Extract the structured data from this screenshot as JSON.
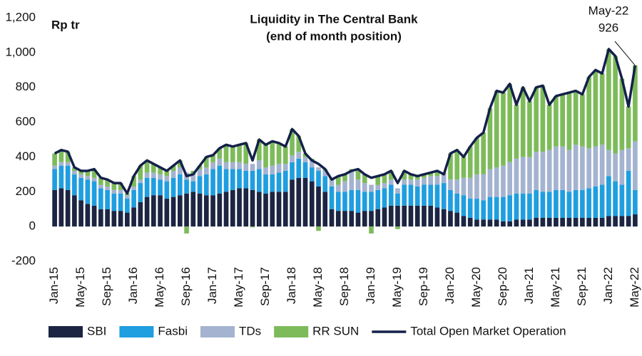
{
  "chart_data": {
    "type": "bar",
    "stacked": true,
    "grid": false,
    "title": "Liquidity in The Central Bank",
    "subtitle": "(end of month position)",
    "y_label": "Rp tr",
    "legend": "bottom",
    "categories": [
      "Jan-15",
      null,
      null,
      null,
      "May-15",
      null,
      null,
      null,
      "Sep-15",
      null,
      null,
      null,
      "Jan-16",
      null,
      null,
      null,
      "May-16",
      null,
      null,
      null,
      "Sep-16",
      null,
      null,
      null,
      "Jan-17",
      null,
      null,
      null,
      "May-17",
      null,
      null,
      null,
      "Sep-17",
      null,
      null,
      null,
      "Jan-18",
      null,
      null,
      null,
      "May-18",
      null,
      null,
      null,
      "Sep-18",
      null,
      null,
      null,
      "Jan-19",
      null,
      null,
      null,
      "May-19",
      null,
      null,
      null,
      "Sep-19",
      null,
      null,
      null,
      "Jan-20",
      null,
      null,
      null,
      "May-20",
      null,
      null,
      null,
      "Sep-20",
      null,
      null,
      null,
      "Jan-21",
      null,
      null,
      null,
      "May-21",
      null,
      null,
      null,
      "Sep-21",
      null,
      null,
      null,
      "Jan-22",
      null,
      null,
      null,
      "May-22"
    ],
    "ylim": [
      -200,
      1200
    ],
    "yticks": [
      -200,
      0,
      200,
      400,
      600,
      800,
      {
        "value": 1000,
        "label": "1,000"
      },
      {
        "value": 1200,
        "label": "1,200"
      }
    ],
    "series": [
      {
        "name": "SBI",
        "type": "bar",
        "color": "#1c2541",
        "values": [
          210,
          220,
          210,
          180,
          150,
          130,
          120,
          100,
          100,
          90,
          90,
          80,
          110,
          140,
          170,
          180,
          180,
          160,
          170,
          180,
          190,
          200,
          190,
          180,
          180,
          190,
          200,
          210,
          220,
          220,
          210,
          200,
          190,
          200,
          200,
          200,
          270,
          280,
          280,
          260,
          230,
          200,
          100,
          90,
          90,
          90,
          80,
          90,
          90,
          100,
          110,
          120,
          120,
          120,
          120,
          120,
          120,
          120,
          110,
          100,
          90,
          80,
          60,
          50,
          40,
          40,
          40,
          40,
          30,
          30,
          40,
          40,
          40,
          50,
          50,
          50,
          50,
          50,
          50,
          50,
          50,
          50,
          50,
          50,
          60,
          60,
          60,
          60,
          70
        ]
      },
      {
        "name": "Fasbi",
        "type": "bar",
        "color": "#1f9ee0",
        "values": [
          120,
          130,
          140,
          120,
          130,
          140,
          140,
          120,
          110,
          100,
          100,
          80,
          100,
          110,
          110,
          100,
          90,
          100,
          110,
          120,
          80,
          60,
          100,
          120,
          150,
          160,
          130,
          120,
          110,
          100,
          110,
          130,
          110,
          100,
          110,
          120,
          100,
          110,
          90,
          80,
          90,
          90,
          130,
          110,
          110,
          120,
          130,
          110,
          110,
          110,
          110,
          120,
          70,
          120,
          120,
          110,
          120,
          120,
          130,
          150,
          120,
          110,
          120,
          110,
          120,
          110,
          130,
          130,
          140,
          150,
          150,
          150,
          150,
          160,
          150,
          150,
          160,
          160,
          150,
          160,
          160,
          170,
          180,
          190,
          230,
          200,
          180,
          260,
          140
        ]
      },
      {
        "name": "TDs",
        "type": "bar",
        "color": "#a4b3d0",
        "values": [
          20,
          20,
          20,
          20,
          20,
          20,
          20,
          20,
          20,
          20,
          20,
          20,
          20,
          20,
          30,
          30,
          30,
          30,
          40,
          40,
          40,
          40,
          40,
          40,
          40,
          40,
          40,
          40,
          40,
          40,
          40,
          50,
          40,
          50,
          50,
          40,
          40,
          40,
          30,
          40,
          20,
          30,
          40,
          40,
          60,
          110,
          60,
          50,
          40,
          30,
          30,
          30,
          30,
          30,
          30,
          40,
          40,
          50,
          50,
          50,
          60,
          80,
          100,
          120,
          140,
          150,
          160,
          170,
          180,
          190,
          200,
          210,
          210,
          220,
          230,
          240,
          250,
          250,
          240,
          260,
          250,
          230,
          230,
          230,
          150,
          160,
          200,
          130,
          280
        ]
      },
      {
        "name": "RR SUN",
        "type": "bar",
        "color": "#7dbb5a",
        "values": [
          70,
          70,
          60,
          20,
          20,
          30,
          50,
          40,
          40,
          40,
          40,
          10,
          60,
          80,
          70,
          50,
          40,
          30,
          30,
          40,
          -40,
          20,
          20,
          60,
          40,
          60,
          100,
          90,
          100,
          120,
          -5,
          120,
          130,
          140,
          120,
          100,
          150,
          90,
          20,
          10,
          -25,
          10,
          10,
          50,
          40,
          10,
          60,
          50,
          -40,
          50,
          50,
          50,
          -15,
          50,
          30,
          20,
          20,
          20,
          30,
          10,
          150,
          170,
          120,
          180,
          210,
          240,
          350,
          440,
          420,
          450,
          310,
          400,
          320,
          370,
          380,
          260,
          290,
          300,
          330,
          310,
          300,
          410,
          440,
          410,
          580,
          560,
          410,
          240,
          436
        ]
      },
      {
        "name": "Total Open Market Operation",
        "type": "line",
        "color": "#14204a",
        "values": [
          420,
          440,
          430,
          340,
          320,
          320,
          330,
          280,
          270,
          250,
          250,
          190,
          290,
          350,
          380,
          360,
          340,
          320,
          350,
          380,
          290,
          300,
          350,
          400,
          410,
          450,
          470,
          460,
          470,
          480,
          380,
          500,
          470,
          490,
          480,
          460,
          560,
          520,
          420,
          380,
          360,
          330,
          270,
          290,
          300,
          320,
          330,
          300,
          280,
          290,
          300,
          320,
          250,
          320,
          300,
          290,
          300,
          310,
          320,
          300,
          420,
          440,
          400,
          460,
          510,
          540,
          680,
          780,
          770,
          820,
          700,
          800,
          720,
          800,
          810,
          700,
          750,
          760,
          770,
          780,
          760,
          860,
          900,
          880,
          1020,
          980,
          850,
          690,
          926
        ]
      }
    ]
  }
}
